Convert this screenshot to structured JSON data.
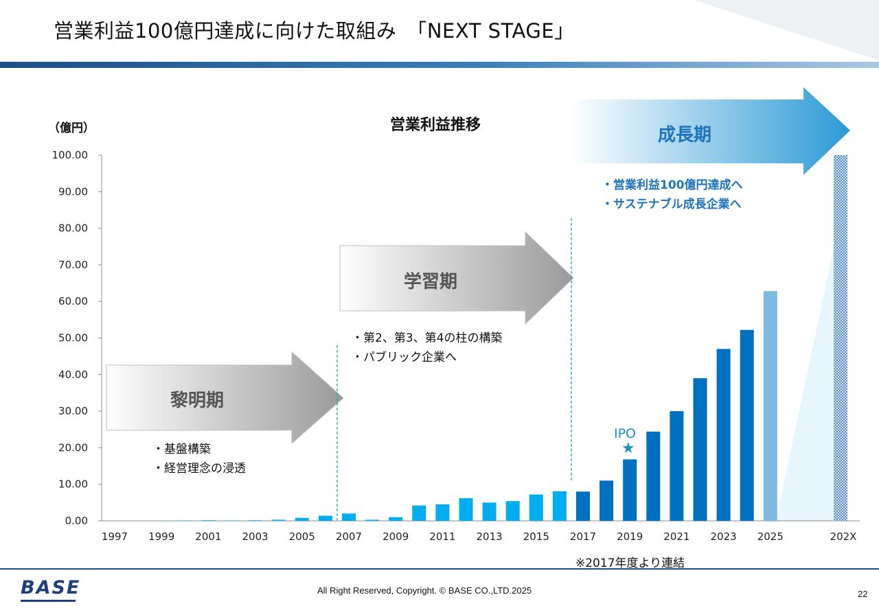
{
  "title": "営業利益100億円達成に向けた取組み　「NEXT STAGE」",
  "chart_title": "営業利益推移",
  "unit": "（億円）",
  "stages": [
    {
      "label": "黎明期",
      "notes": [
        "・基盤構築",
        "・経営理念の浸透"
      ]
    },
    {
      "label": "学習期",
      "notes": [
        "・第2、第3、第4の柱の構築",
        "・パブリック企業へ"
      ]
    },
    {
      "label": "成長期",
      "notes": [
        "・営業利益100億円達成へ",
        "・サステナブル成長企業へ"
      ]
    }
  ],
  "ipo_label": "IPO",
  "ipo_star": "★",
  "footnote": "※2017年度より連結",
  "copyright": "All Right Reserved, Copyright. © BASE CO.,LTD.2025",
  "page_number": "22",
  "logo_text": "BASE",
  "colors": {
    "bar_early": "#00aeef",
    "bar_consolidated": "#0070c0",
    "bar_forecast": "#7db9e0",
    "bar_target": "#5b8fc4",
    "stage_growth_text": "#1e73be",
    "divider": "#1aa3a3"
  },
  "chart_data": {
    "type": "bar",
    "title": "営業利益推移",
    "ylabel": "（億円）",
    "ylim": [
      0,
      100
    ],
    "yticks": [
      "100.00",
      "90.00",
      "80.00",
      "70.00",
      "60.00",
      "50.00",
      "40.00",
      "30.00",
      "20.00",
      "10.00",
      "0.00"
    ],
    "xtick_labels": [
      "1997",
      "1999",
      "2001",
      "2003",
      "2005",
      "2007",
      "2009",
      "2011",
      "2013",
      "2015",
      "2017",
      "2019",
      "2021",
      "2023",
      "2025",
      "202X"
    ],
    "categories": [
      "1997",
      "1998",
      "1999",
      "2000",
      "2001",
      "2002",
      "2003",
      "2004",
      "2005",
      "2006",
      "2007",
      "2008",
      "2009",
      "2010",
      "2011",
      "2012",
      "2013",
      "2014",
      "2015",
      "2016",
      "2017",
      "2018",
      "2019",
      "2020",
      "2021",
      "2022",
      "2023",
      "2024",
      "2025",
      "202X"
    ],
    "values": [
      0.0,
      0.0,
      0.05,
      0.1,
      0.15,
      0.1,
      0.15,
      0.3,
      0.8,
      1.4,
      2.0,
      0.3,
      1.0,
      4.2,
      4.5,
      6.2,
      5.0,
      5.4,
      7.2,
      8.1,
      8.0,
      11.0,
      16.8,
      24.4,
      30.0,
      39.0,
      47.0,
      52.2,
      62.8,
      100.0
    ],
    "series_kind": [
      "early",
      "early",
      "early",
      "early",
      "early",
      "early",
      "early",
      "early",
      "early",
      "early",
      "early",
      "early",
      "early",
      "early",
      "early",
      "early",
      "early",
      "early",
      "early",
      "early",
      "consolidated",
      "consolidated",
      "consolidated",
      "consolidated",
      "consolidated",
      "consolidated",
      "consolidated",
      "consolidated",
      "forecast",
      "target"
    ],
    "grid": false,
    "legend": "none"
  }
}
